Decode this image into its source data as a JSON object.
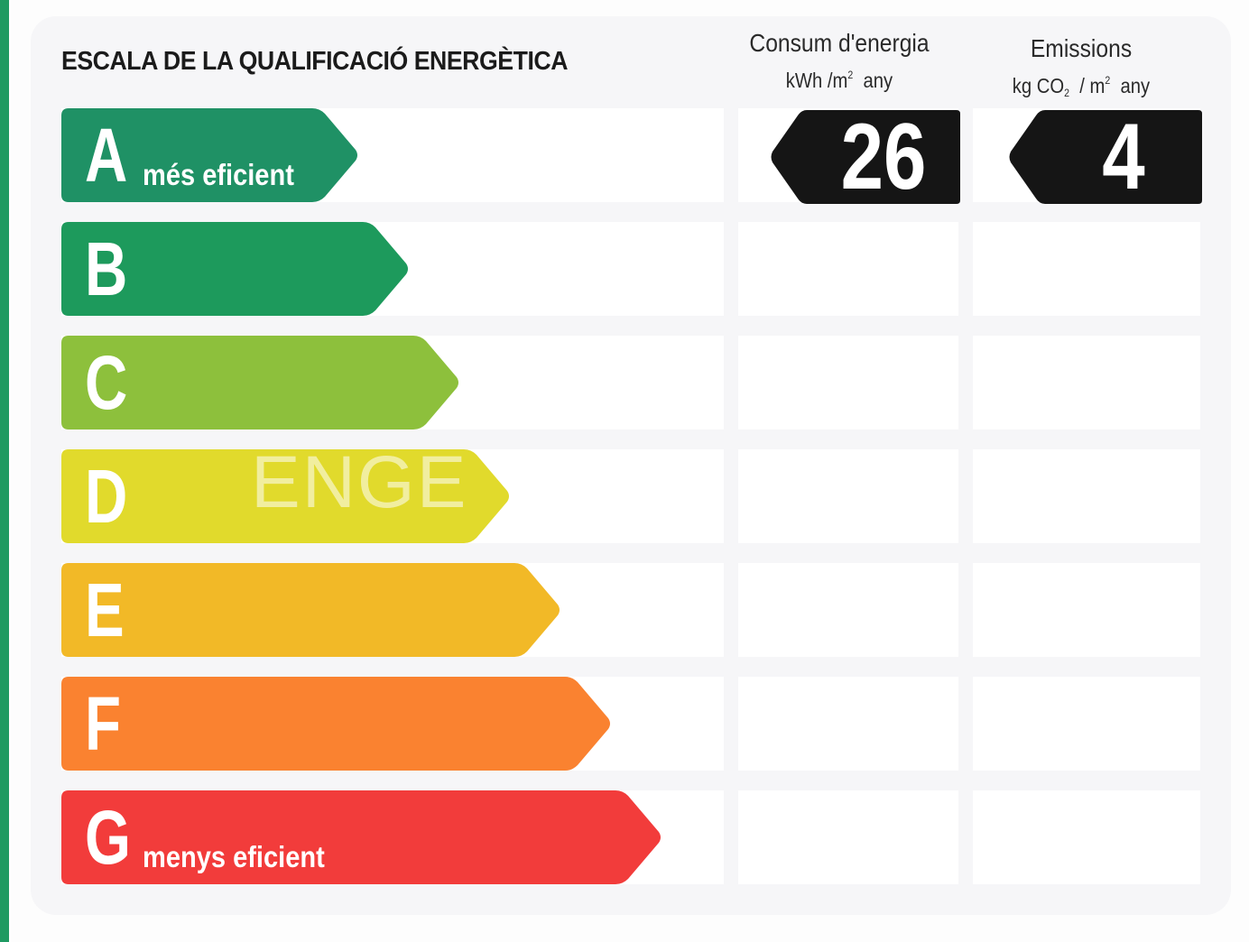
{
  "title": "ESCALA DE LA QUALIFICACIÓ ENERGÈTICA",
  "columns": {
    "consum": {
      "line1": "Consum d'energia",
      "unit_a": "kWh /m",
      "unit_sup": "2",
      "unit_b": "any"
    },
    "emissions": {
      "line1": "Emissions",
      "unit_a": "kg CO",
      "unit_sub": "2",
      "unit_mid": "/ m",
      "unit_sup": "2",
      "unit_b": "any"
    }
  },
  "ratings": [
    {
      "letter": "A",
      "label": "més eficient",
      "color": "#1f9165",
      "length": 0.4495
    },
    {
      "letter": "B",
      "label": "",
      "color": "#1d9a5c",
      "length": 0.5259
    },
    {
      "letter": "C",
      "label": "",
      "color": "#8dc03c",
      "length": 0.6022
    },
    {
      "letter": "D",
      "label": "",
      "color": "#e1da2c",
      "length": 0.6785
    },
    {
      "letter": "E",
      "label": "",
      "color": "#f2b927",
      "length": 0.7548
    },
    {
      "letter": "F",
      "label": "",
      "color": "#fa8230",
      "length": 0.8311
    },
    {
      "letter": "G",
      "label": "menys eficient",
      "color": "#f23c3b",
      "length": 0.9074
    }
  ],
  "result": {
    "rating": "A",
    "consum_value": "26",
    "emissions_value": "4",
    "badge_color": "#151515"
  },
  "watermark": "ENGE"
}
